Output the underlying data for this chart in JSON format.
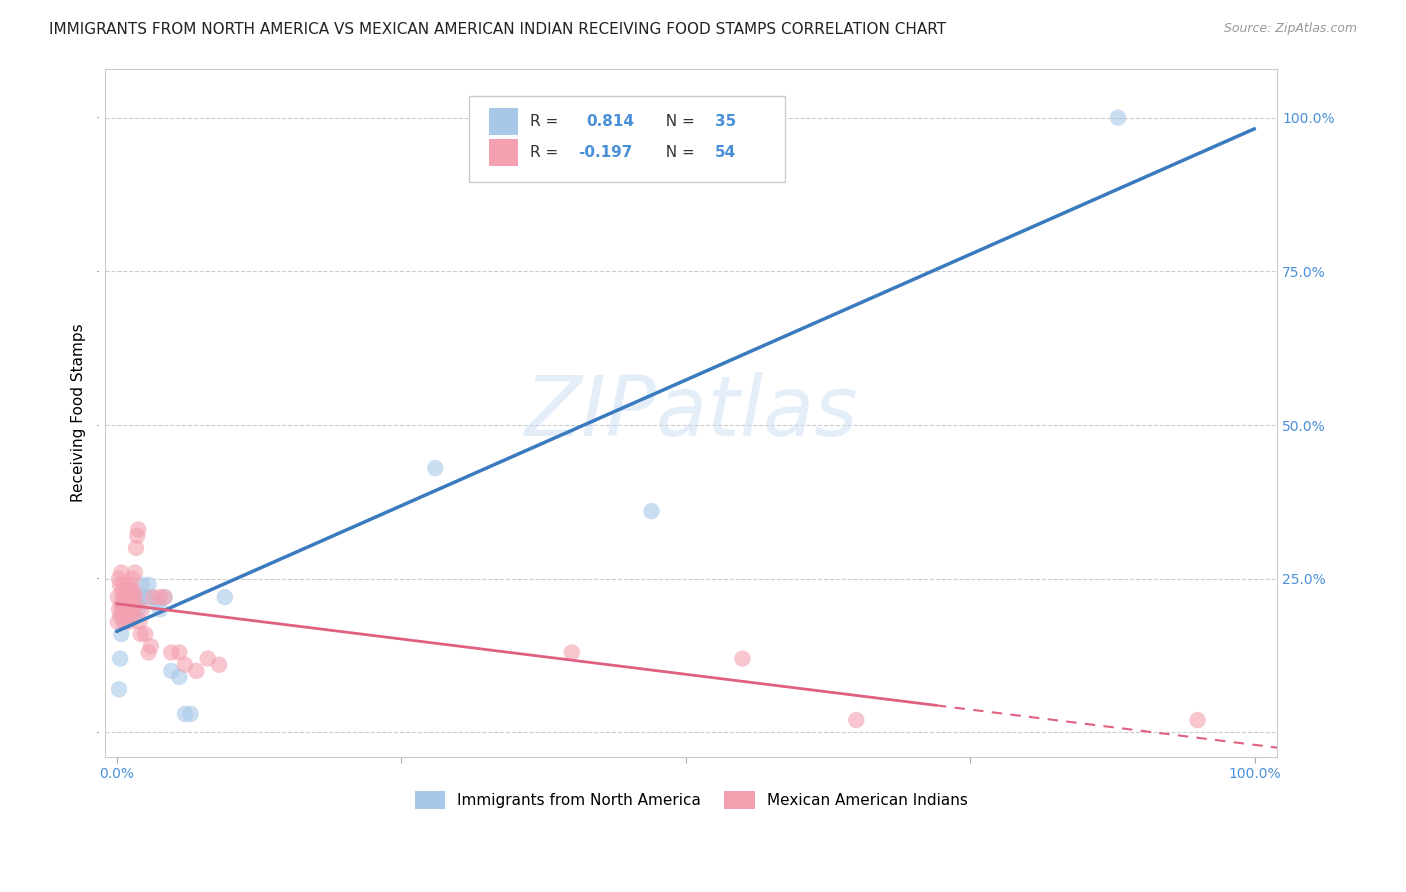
{
  "title": "IMMIGRANTS FROM NORTH AMERICA VS MEXICAN AMERICAN INDIAN RECEIVING FOOD STAMPS CORRELATION CHART",
  "source": "Source: ZipAtlas.com",
  "ylabel": "Receiving Food Stamps",
  "R_blue": 0.814,
  "N_blue": 35,
  "R_pink": -0.197,
  "N_pink": 54,
  "blue_color": "#a8c8e8",
  "pink_color": "#f4a0b0",
  "blue_line_color": "#3a7abf",
  "pink_line_color": "#e06080",
  "watermark_text": "ZIPatlas",
  "legend_label_blue": "Immigrants from North America",
  "legend_label_pink": "Mexican American Indians",
  "blue_scatter_x": [
    0.002,
    0.003,
    0.004,
    0.005,
    0.005,
    0.006,
    0.007,
    0.008,
    0.009,
    0.01,
    0.011,
    0.012,
    0.013,
    0.014,
    0.015,
    0.016,
    0.017,
    0.018,
    0.019,
    0.02,
    0.022,
    0.025,
    0.028,
    0.03,
    0.035,
    0.038,
    0.042,
    0.048,
    0.055,
    0.06,
    0.065,
    0.095,
    0.28,
    0.47,
    0.88
  ],
  "blue_scatter_y": [
    0.07,
    0.12,
    0.16,
    0.19,
    0.21,
    0.2,
    0.18,
    0.22,
    0.2,
    0.21,
    0.23,
    0.22,
    0.2,
    0.23,
    0.21,
    0.19,
    0.22,
    0.21,
    0.2,
    0.22,
    0.24,
    0.22,
    0.24,
    0.22,
    0.21,
    0.2,
    0.22,
    0.1,
    0.09,
    0.03,
    0.03,
    0.22,
    0.43,
    0.36,
    1.0
  ],
  "pink_scatter_x": [
    0.001,
    0.001,
    0.002,
    0.002,
    0.003,
    0.003,
    0.004,
    0.004,
    0.005,
    0.005,
    0.006,
    0.006,
    0.007,
    0.007,
    0.008,
    0.008,
    0.009,
    0.009,
    0.01,
    0.01,
    0.011,
    0.011,
    0.012,
    0.012,
    0.013,
    0.013,
    0.014,
    0.014,
    0.015,
    0.015,
    0.016,
    0.016,
    0.017,
    0.018,
    0.019,
    0.02,
    0.021,
    0.022,
    0.025,
    0.028,
    0.03,
    0.032,
    0.038,
    0.042,
    0.048,
    0.055,
    0.06,
    0.07,
    0.08,
    0.09,
    0.4,
    0.55,
    0.65,
    0.95
  ],
  "pink_scatter_y": [
    0.18,
    0.22,
    0.2,
    0.25,
    0.24,
    0.19,
    0.21,
    0.26,
    0.2,
    0.23,
    0.22,
    0.18,
    0.24,
    0.2,
    0.22,
    0.19,
    0.21,
    0.23,
    0.2,
    0.22,
    0.24,
    0.18,
    0.2,
    0.23,
    0.21,
    0.19,
    0.22,
    0.25,
    0.2,
    0.23,
    0.26,
    0.22,
    0.3,
    0.32,
    0.33,
    0.18,
    0.16,
    0.2,
    0.16,
    0.13,
    0.14,
    0.22,
    0.22,
    0.22,
    0.13,
    0.13,
    0.11,
    0.1,
    0.12,
    0.11,
    0.13,
    0.12,
    0.02,
    0.02
  ],
  "xlim": [
    -0.01,
    1.02
  ],
  "ylim": [
    -0.04,
    1.08
  ],
  "background_color": "#ffffff",
  "grid_color": "#cccccc",
  "tick_color": "#4a90d9",
  "title_fontsize": 11,
  "axis_label_fontsize": 11,
  "tick_fontsize": 10,
  "legend_fontsize": 11,
  "watermark_fontsize": 60
}
